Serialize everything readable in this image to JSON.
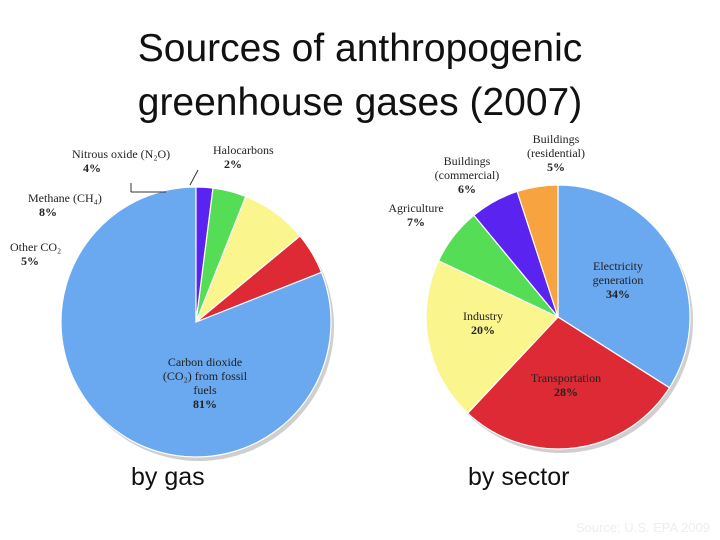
{
  "title": {
    "line1": "Sources of anthropogenic",
    "line2": "greenhouse gases (2007)"
  },
  "colors": {
    "blue": "#6aa8f0",
    "red": "#dd2a35",
    "yellow": "#fbf58e",
    "green": "#55dd55",
    "purple": "#5a23f0",
    "orange": "#f6a340"
  },
  "chart_data": [
    {
      "type": "pie",
      "caption": "by gas",
      "slices": [
        {
          "label_lines": [
            "Carbon dioxide",
            "(CO₂) from fossil",
            "fuels"
          ],
          "pct_label": "81%",
          "value": 81,
          "color": "#6aa8f0"
        },
        {
          "label_lines": [
            "Other CO₂"
          ],
          "pct_label": "5%",
          "value": 5,
          "color": "#dd2a35"
        },
        {
          "label_lines": [
            "Methane (CH₄)"
          ],
          "pct_label": "8%",
          "value": 8,
          "color": "#fbf58e"
        },
        {
          "label_lines": [
            "Nitrous oxide (N₂O)"
          ],
          "pct_label": "4%",
          "value": 4,
          "color": "#55dd55"
        },
        {
          "label_lines": [
            "Halocarbons"
          ],
          "pct_label": "2%",
          "value": 2,
          "color": "#5a23f0"
        }
      ]
    },
    {
      "type": "pie",
      "caption": "by sector",
      "slices": [
        {
          "label_lines": [
            "Electricity",
            "generation"
          ],
          "pct_label": "34%",
          "value": 34,
          "color": "#6aa8f0"
        },
        {
          "label_lines": [
            "Transportation"
          ],
          "pct_label": "28%",
          "value": 28,
          "color": "#dd2a35"
        },
        {
          "label_lines": [
            "Industry"
          ],
          "pct_label": "20%",
          "value": 20,
          "color": "#fbf58e"
        },
        {
          "label_lines": [
            "Agriculture"
          ],
          "pct_label": "7%",
          "value": 7,
          "color": "#55dd55"
        },
        {
          "label_lines": [
            "Buildings",
            "(commercial)"
          ],
          "pct_label": "6%",
          "value": 6,
          "color": "#5a23f0"
        },
        {
          "label_lines": [
            "Buildings",
            "(residential)"
          ],
          "pct_label": "5%",
          "value": 5,
          "color": "#f6a340"
        }
      ]
    }
  ],
  "source": "Source: U.S. EPA 2009"
}
